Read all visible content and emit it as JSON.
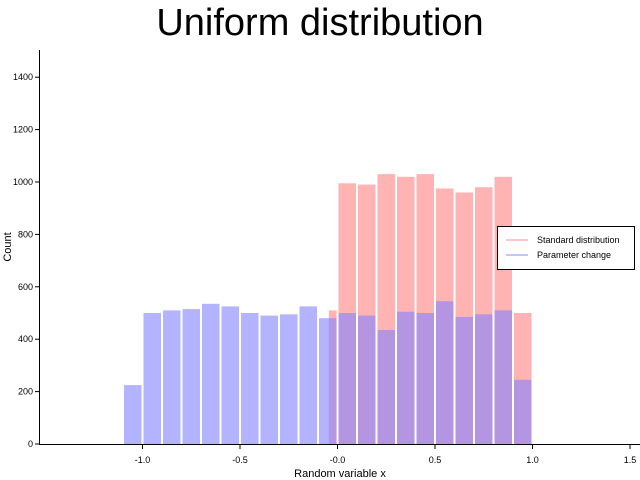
{
  "chart_data": {
    "type": "bar",
    "title": "Uniform distribution",
    "xlabel": "Random variable x",
    "ylabel": "Count",
    "xlim": [
      -1.05,
      2.0
    ],
    "ylim": [
      0,
      1500
    ],
    "xticks": [
      -1.0,
      -0.5,
      -0.0,
      0.5,
      1.0,
      1.5
    ],
    "xtick_labels": [
      "-1.0",
      "-0.5",
      "-0.0",
      "0.5",
      "1.0",
      "1.5"
    ],
    "yticks": [
      0,
      200,
      400,
      600,
      800,
      1000,
      1200,
      1400
    ],
    "bin_width": 0.1,
    "legend_position": "center-right",
    "grid": false,
    "series": [
      {
        "name": "Standard distribution",
        "color": "#ff8080",
        "opacity": 0.6,
        "bin_edges": [
          0.0,
          0.1,
          0.2,
          0.3,
          0.4,
          0.5,
          0.6,
          0.7,
          0.8,
          0.9,
          1.0
        ],
        "values": [
          995,
          990,
          1030,
          1020,
          1030,
          975,
          960,
          980,
          1020,
          500
        ],
        "prefix_bin": {
          "start": -0.05,
          "value": 510
        }
      },
      {
        "name": "Parameter change",
        "color": "#8080ff",
        "opacity": 0.6,
        "bin_edges": [
          -1.0,
          -0.9,
          -0.8,
          -0.7,
          -0.6,
          -0.5,
          -0.4,
          -0.3,
          -0.2,
          -0.1,
          0.0,
          0.1,
          0.2,
          0.3,
          0.4,
          0.5,
          0.6,
          0.7,
          0.8,
          0.9,
          1.0
        ],
        "values": [
          500,
          510,
          515,
          535,
          525,
          500,
          490,
          495,
          525,
          480,
          500,
          490,
          435,
          505,
          500,
          545,
          485,
          495,
          510,
          245
        ],
        "prefix_bin": {
          "start": -1.1,
          "value": 225
        }
      }
    ]
  }
}
